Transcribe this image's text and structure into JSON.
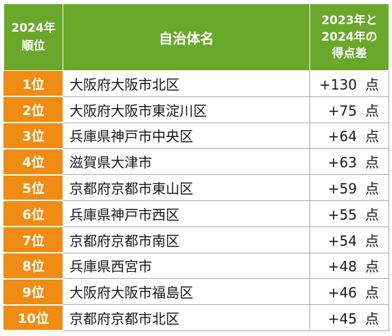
{
  "header": {
    "rank_line1": "2024年",
    "rank_line2": "順位",
    "name": "自治体名",
    "diff_line1": "2023年と",
    "diff_line2": "2024年の",
    "diff_line3": "得点差"
  },
  "colors": {
    "header_bg": "#6aa82c",
    "rank_bg": "#f08c14"
  },
  "rows": [
    {
      "rank": "1位",
      "name": "大阪府大阪市北区",
      "diff": "+130",
      "unit": "点"
    },
    {
      "rank": "2位",
      "name": "大阪府大阪市東淀川区",
      "diff": "+75",
      "unit": "点"
    },
    {
      "rank": "3位",
      "name": "兵庫県神戸市中央区",
      "diff": "+64",
      "unit": "点"
    },
    {
      "rank": "4位",
      "name": "滋賀県大津市",
      "diff": "+63",
      "unit": "点"
    },
    {
      "rank": "5位",
      "name": "京都府京都市東山区",
      "diff": "+59",
      "unit": "点"
    },
    {
      "rank": "6位",
      "name": "兵庫県神戸市西区",
      "diff": "+55",
      "unit": "点"
    },
    {
      "rank": "7位",
      "name": "京都府京都市南区",
      "diff": "+54",
      "unit": "点"
    },
    {
      "rank": "8位",
      "name": "兵庫県西宮市",
      "diff": "+48",
      "unit": "点"
    },
    {
      "rank": "9位",
      "name": "大阪府大阪市福島区",
      "diff": "+46",
      "unit": "点"
    },
    {
      "rank": "10位",
      "name": "京都府京都市北区",
      "diff": "+45",
      "unit": "点"
    }
  ]
}
